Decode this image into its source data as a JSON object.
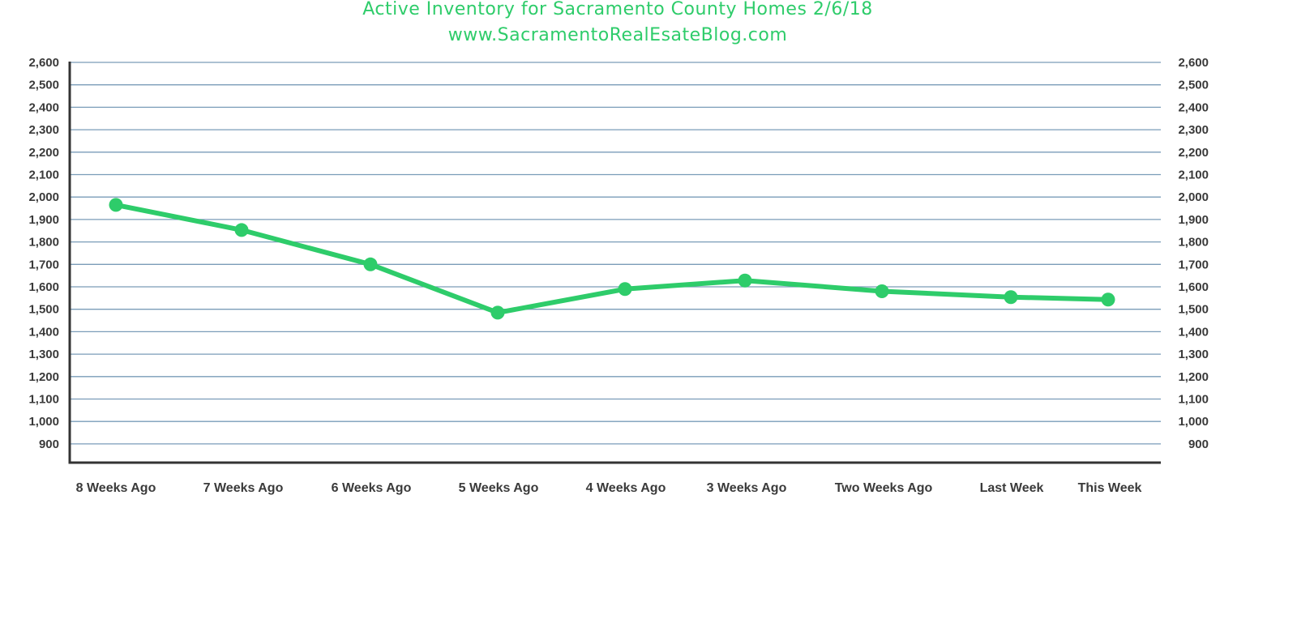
{
  "chart_data": {
    "type": "line",
    "title": "Active Inventory for Sacramento County Homes 2/6/18",
    "subtitle": "www.SacramentoRealEsateBlog.com",
    "categories": [
      "8 Weeks Ago",
      "7 Weeks Ago",
      "6 Weeks Ago",
      "5 Weeks Ago",
      "4 Weeks Ago",
      "3 Weeks Ago",
      "Two Weeks Ago",
      "Last Week",
      "This Week"
    ],
    "series": [
      {
        "values": [
          1965,
          1853,
          1700,
          1485,
          1590,
          1628,
          1580,
          1554,
          1543
        ],
        "color": "#2ecc6a"
      }
    ],
    "ylim": [
      900,
      2600
    ],
    "yticks": [
      900,
      1000,
      1100,
      1200,
      1300,
      1400,
      1500,
      1600,
      1700,
      1800,
      1900,
      2000,
      2100,
      2200,
      2300,
      2400,
      2500,
      2600
    ],
    "ytick_labels": [
      "900",
      "1,000",
      "1,100",
      "1,200",
      "1,300",
      "1,400",
      "1,500",
      "1,600",
      "1,700",
      "1,800",
      "1,900",
      "2,000",
      "2,100",
      "2,200",
      "2,300",
      "2,400",
      "2,500",
      "2,600"
    ],
    "secondary_axis": true,
    "grid": true,
    "xlabel": "",
    "ylabel": ""
  },
  "colors": {
    "line": "#2ecc6a",
    "grid": "#7a9cb8",
    "axis": "#333333",
    "text": "#3a3a3a"
  }
}
